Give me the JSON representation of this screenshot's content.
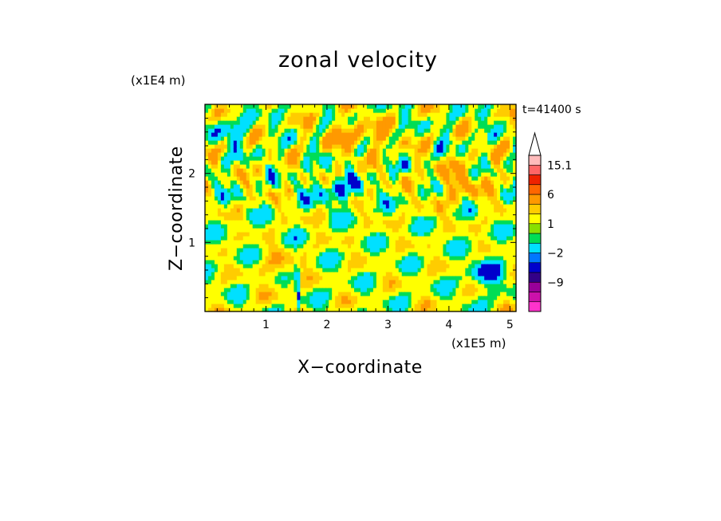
{
  "chart_data": {
    "type": "heatmap",
    "title": "zonal velocity",
    "xlabel": "X−coordinate",
    "ylabel": "Z−coordinate",
    "x_unit_label": "(x1E5 m)",
    "y_unit_label": "(x1E4 m)",
    "time_label": "t=41400 s",
    "xlim": [
      0,
      5.1
    ],
    "ylim": [
      0,
      3.0
    ],
    "x_ticks": [
      "1",
      "2",
      "3",
      "4",
      "5"
    ],
    "y_ticks": [
      "1",
      "2"
    ],
    "colorbar": {
      "labels": [
        "15.1",
        "6",
        "1",
        "−2",
        "−9"
      ],
      "levels": [
        {
          "color": "#ff33cc"
        },
        {
          "color": "#cc11aa"
        },
        {
          "color": "#990099"
        },
        {
          "color": "#330088"
        },
        {
          "color": "#0000cc"
        },
        {
          "color": "#0077ff"
        },
        {
          "color": "#00e0ff"
        },
        {
          "color": "#00dd55"
        },
        {
          "color": "#88e000"
        },
        {
          "color": "#ffff00"
        },
        {
          "color": "#ffcc00"
        },
        {
          "color": "#ff9900"
        },
        {
          "color": "#ff6600"
        },
        {
          "color": "#ee2200"
        },
        {
          "color": "#ff6666"
        },
        {
          "color": "#ffbbbb"
        },
        {
          "color": "#ffffff"
        }
      ]
    },
    "field_colors": {
      "strong_neg": "#0000cc",
      "neg": "#00e0ff",
      "weak_neg": "#00dd55",
      "zero": "#ffff00",
      "weak_pos": "#ffcc00",
      "pos": "#ff9900"
    }
  }
}
